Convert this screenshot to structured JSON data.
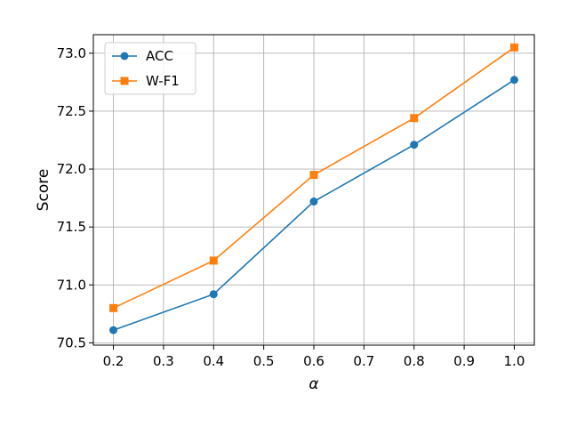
{
  "chart_data": {
    "type": "line",
    "xlabel": "α",
    "ylabel": "Score",
    "x": [
      0.2,
      0.4,
      0.6,
      0.8,
      1.0
    ],
    "xlim": [
      0.16,
      1.04
    ],
    "ylim": [
      70.48,
      73.16
    ],
    "x_ticks": [
      "0.2",
      "0.3",
      "0.4",
      "0.5",
      "0.6",
      "0.7",
      "0.8",
      "0.9",
      "1.0"
    ],
    "y_ticks": [
      "70.5",
      "71.0",
      "71.5",
      "72.0",
      "72.5",
      "73.0"
    ],
    "grid": true,
    "legend_position": "top-left",
    "series": [
      {
        "name": "ACC",
        "values": [
          70.61,
          70.92,
          71.72,
          72.21,
          72.77
        ],
        "color": "#1f77b4",
        "marker": "circle"
      },
      {
        "name": "W-F1",
        "values": [
          70.8,
          71.21,
          71.95,
          72.44,
          73.05
        ],
        "color": "#ff7f0e",
        "marker": "square"
      }
    ]
  }
}
